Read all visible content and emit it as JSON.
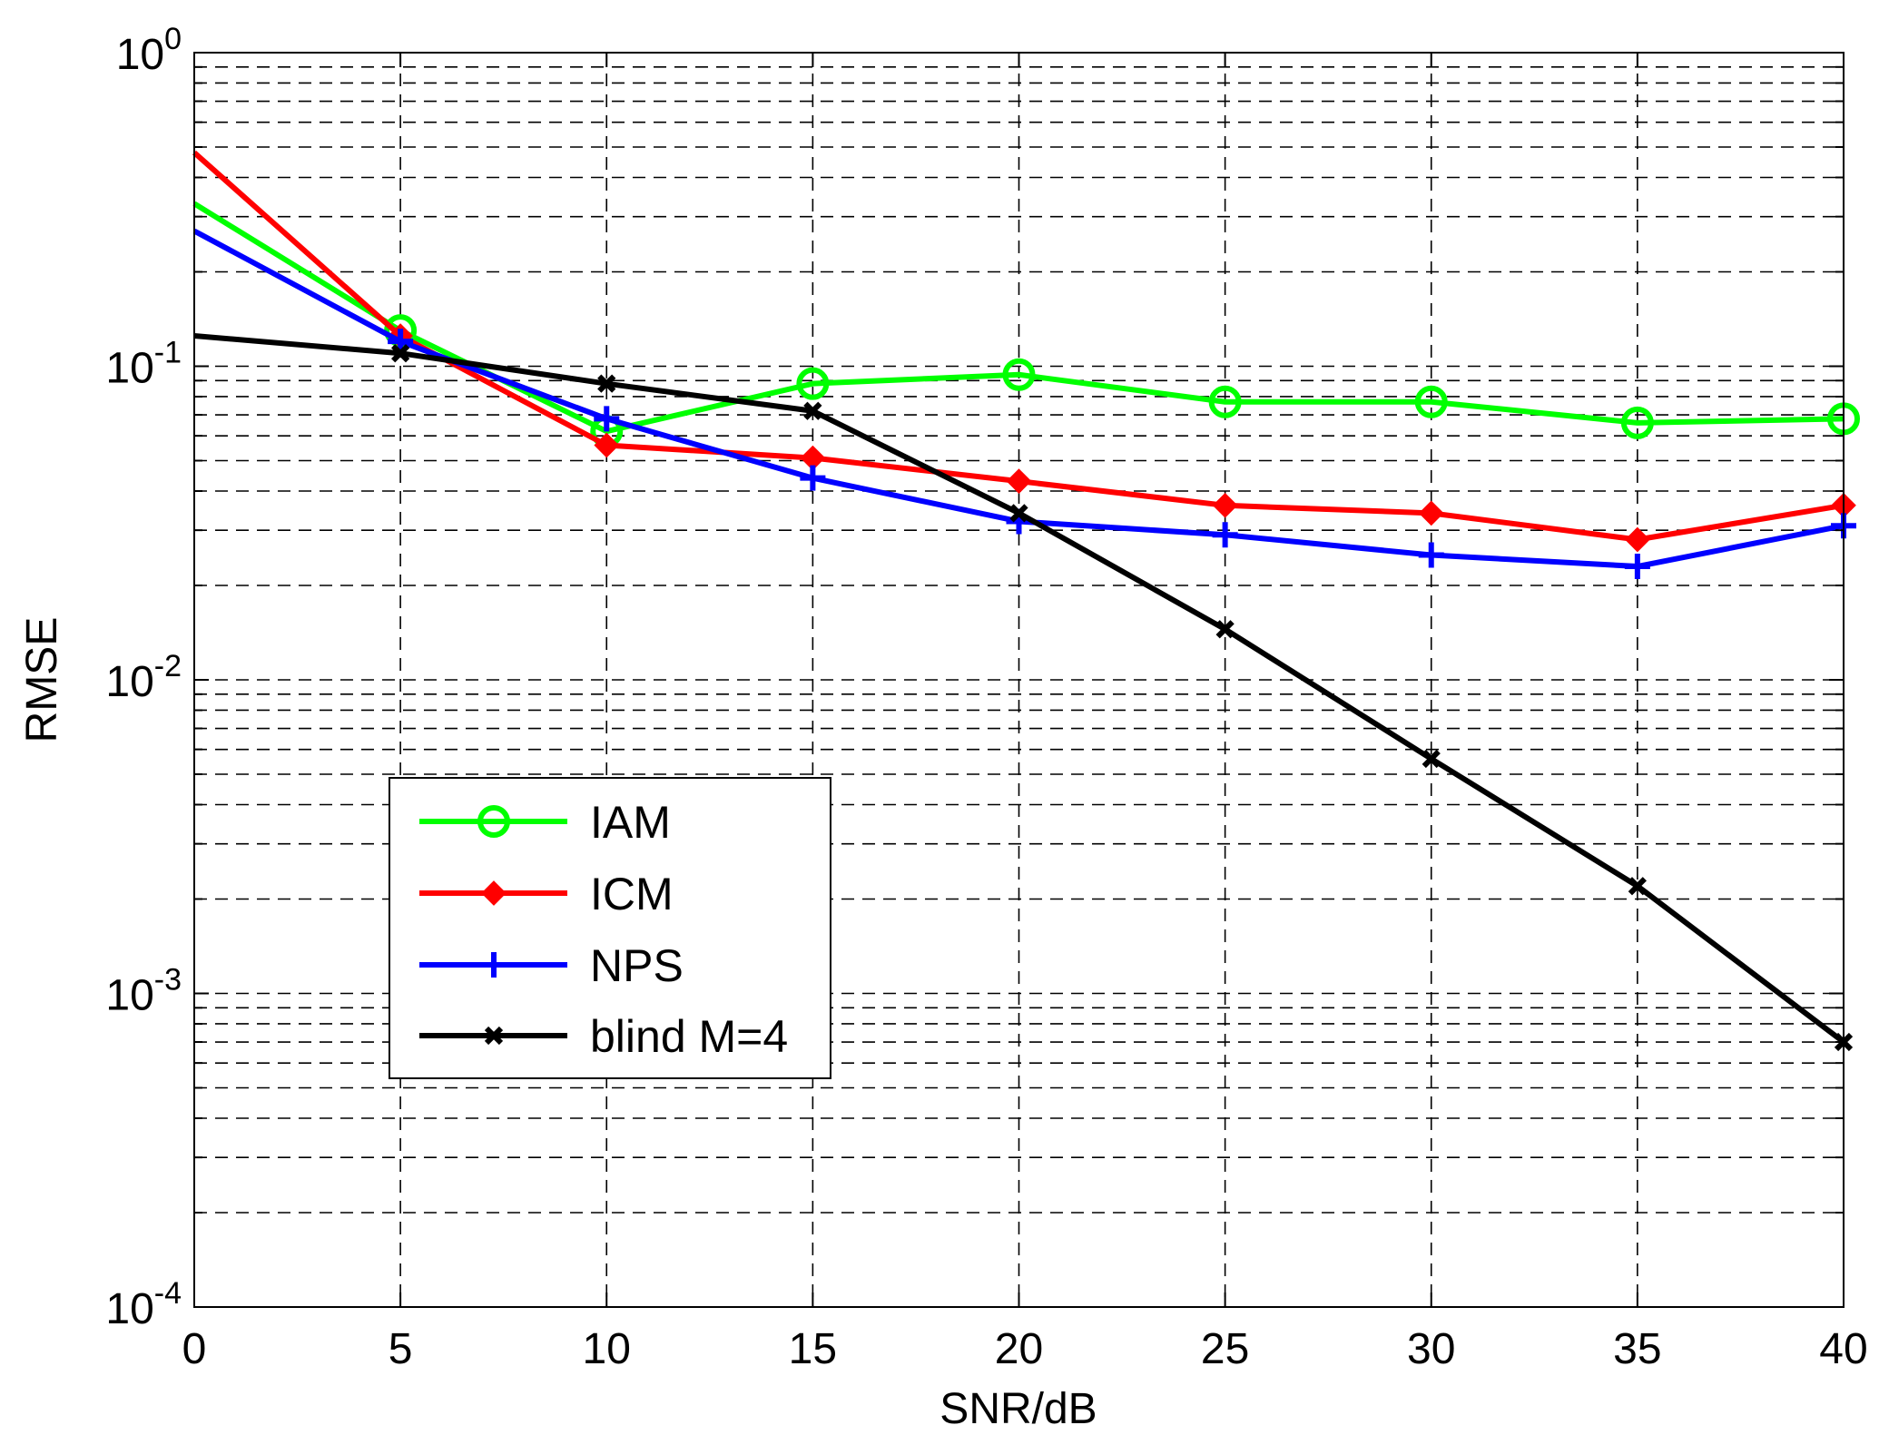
{
  "chart_data": {
    "type": "line",
    "title": "",
    "xlabel": "SNR/dB",
    "ylabel": "RMSE",
    "xlim": [
      0,
      40
    ],
    "ylim": [
      0.0001,
      1
    ],
    "yscale": "log",
    "grid": true,
    "legend_position": "bottom-left",
    "x": [
      0,
      5,
      10,
      15,
      20,
      25,
      30,
      35,
      40
    ],
    "x_ticks": [
      "0",
      "5",
      "10",
      "15",
      "20",
      "25",
      "30",
      "35",
      "40"
    ],
    "y_ticks": [
      {
        "base": "10",
        "exp": "-4",
        "value": 0.0001
      },
      {
        "base": "10",
        "exp": "-3",
        "value": 0.001
      },
      {
        "base": "10",
        "exp": "-2",
        "value": 0.01
      },
      {
        "base": "10",
        "exp": "-1",
        "value": 0.1
      },
      {
        "base": "10",
        "exp": "0",
        "value": 1
      }
    ],
    "series": [
      {
        "name": "IAM",
        "color": "#00ff00",
        "marker": "circle",
        "values": [
          0.33,
          0.13,
          0.062,
          0.088,
          0.094,
          0.077,
          0.077,
          0.066,
          0.068
        ]
      },
      {
        "name": "ICM",
        "color": "#ff0000",
        "marker": "diamond",
        "values": [
          0.48,
          0.125,
          0.056,
          0.051,
          0.043,
          0.036,
          0.034,
          0.028,
          0.036
        ]
      },
      {
        "name": "NPS",
        "color": "#0000ff",
        "marker": "plus",
        "values": [
          0.27,
          0.12,
          0.068,
          0.044,
          0.032,
          0.029,
          0.025,
          0.023,
          0.031
        ]
      },
      {
        "name": "blind M=4",
        "color": "#000000",
        "marker": "x",
        "values": [
          0.125,
          0.11,
          0.088,
          0.072,
          0.034,
          0.0145,
          0.0056,
          0.0022,
          0.0007
        ]
      }
    ]
  }
}
